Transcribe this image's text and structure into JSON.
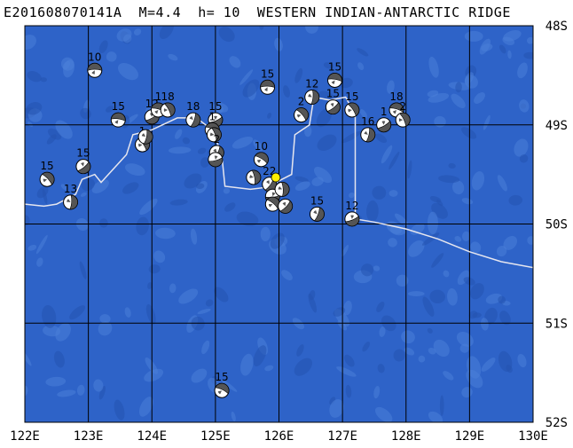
{
  "header": {
    "title": "E201608070141A  M=4.4  h= 10  WESTERN INDIAN-ANTARCTIC RIDGE"
  },
  "map": {
    "lon_range": [
      122,
      130
    ],
    "lat_range": [
      -48,
      -52
    ],
    "lon_ticks": [
      "122E",
      "123E",
      "124E",
      "125E",
      "126E",
      "127E",
      "128E",
      "129E",
      "130E"
    ],
    "lat_ticks": [
      "48S",
      "49S",
      "50S",
      "51S",
      "52S"
    ],
    "colors": {
      "ocean": "#2e63c8",
      "ocean_light": "#4a7fd8",
      "ocean_dark": "#2453b0",
      "grid": "#000000",
      "ridge": "#e6e6ef",
      "star": "#ffee00"
    },
    "epicenter": {
      "lon": 125.95,
      "lat": -49.53
    },
    "ridge_path": [
      [
        122.0,
        -49.8
      ],
      [
        122.3,
        -49.82
      ],
      [
        122.5,
        -49.8
      ],
      [
        122.8,
        -49.7
      ],
      [
        122.9,
        -49.55
      ],
      [
        123.1,
        -49.5
      ],
      [
        123.2,
        -49.58
      ],
      [
        123.6,
        -49.3
      ],
      [
        123.7,
        -49.1
      ],
      [
        124.0,
        -49.05
      ],
      [
        124.4,
        -48.93
      ],
      [
        124.7,
        -48.93
      ],
      [
        124.95,
        -49.05
      ],
      [
        125.1,
        -49.3
      ],
      [
        125.15,
        -49.62
      ],
      [
        125.55,
        -49.65
      ],
      [
        125.8,
        -49.63
      ],
      [
        126.2,
        -49.5
      ],
      [
        126.25,
        -49.1
      ],
      [
        126.48,
        -49.0
      ],
      [
        126.55,
        -48.72
      ],
      [
        126.8,
        -48.75
      ],
      [
        127.05,
        -48.72
      ],
      [
        127.2,
        -48.9
      ],
      [
        127.2,
        -49.4
      ],
      [
        127.2,
        -49.95
      ],
      [
        127.5,
        -49.98
      ],
      [
        128.0,
        -50.05
      ],
      [
        128.5,
        -50.15
      ],
      [
        129.0,
        -50.28
      ],
      [
        129.5,
        -50.38
      ],
      [
        130.0,
        -50.44
      ]
    ],
    "events": [
      {
        "lon": 123.1,
        "lat": -48.45,
        "depth": "10"
      },
      {
        "lon": 122.35,
        "lat": -49.55,
        "depth": "15"
      },
      {
        "lon": 122.72,
        "lat": -49.78,
        "depth": "13"
      },
      {
        "lon": 122.92,
        "lat": -49.42,
        "depth": "15"
      },
      {
        "lon": 123.47,
        "lat": -48.95,
        "depth": "15"
      },
      {
        "lon": 123.85,
        "lat": -49.2,
        "depth": "1"
      },
      {
        "lon": 123.9,
        "lat": -49.12,
        "depth": ""
      },
      {
        "lon": 124.0,
        "lat": -48.92,
        "depth": "12"
      },
      {
        "lon": 124.1,
        "lat": -48.85,
        "depth": "1"
      },
      {
        "lon": 124.25,
        "lat": -48.85,
        "depth": "18"
      },
      {
        "lon": 124.65,
        "lat": -48.95,
        "depth": "18"
      },
      {
        "lon": 125.0,
        "lat": -48.95,
        "depth": "15"
      },
      {
        "lon": 124.95,
        "lat": -49.05,
        "depth": "1"
      },
      {
        "lon": 124.98,
        "lat": -49.1,
        "depth": ""
      },
      {
        "lon": 125.02,
        "lat": -49.28,
        "depth": "2"
      },
      {
        "lon": 125.0,
        "lat": -49.35,
        "depth": ""
      },
      {
        "lon": 125.72,
        "lat": -49.35,
        "depth": "10"
      },
      {
        "lon": 125.6,
        "lat": -49.53,
        "depth": ""
      },
      {
        "lon": 125.85,
        "lat": -49.6,
        "depth": "22"
      },
      {
        "lon": 125.9,
        "lat": -49.72,
        "depth": ""
      },
      {
        "lon": 125.9,
        "lat": -49.8,
        "depth": ""
      },
      {
        "lon": 126.05,
        "lat": -49.65,
        "depth": ""
      },
      {
        "lon": 126.1,
        "lat": -49.82,
        "depth": ""
      },
      {
        "lon": 125.82,
        "lat": -48.62,
        "depth": "15"
      },
      {
        "lon": 126.35,
        "lat": -48.9,
        "depth": "2"
      },
      {
        "lon": 126.52,
        "lat": -48.72,
        "depth": "12"
      },
      {
        "lon": 126.85,
        "lat": -48.82,
        "depth": "15"
      },
      {
        "lon": 126.88,
        "lat": -48.55,
        "depth": "15"
      },
      {
        "lon": 127.15,
        "lat": -48.85,
        "depth": "15"
      },
      {
        "lon": 127.4,
        "lat": -49.1,
        "depth": "16"
      },
      {
        "lon": 127.65,
        "lat": -49.0,
        "depth": "1"
      },
      {
        "lon": 127.85,
        "lat": -48.85,
        "depth": "18"
      },
      {
        "lon": 127.95,
        "lat": -48.95,
        "depth": "2"
      },
      {
        "lon": 126.6,
        "lat": -49.9,
        "depth": "15"
      },
      {
        "lon": 127.15,
        "lat": -49.95,
        "depth": "12"
      },
      {
        "lon": 125.1,
        "lat": -51.68,
        "depth": "15"
      }
    ]
  }
}
